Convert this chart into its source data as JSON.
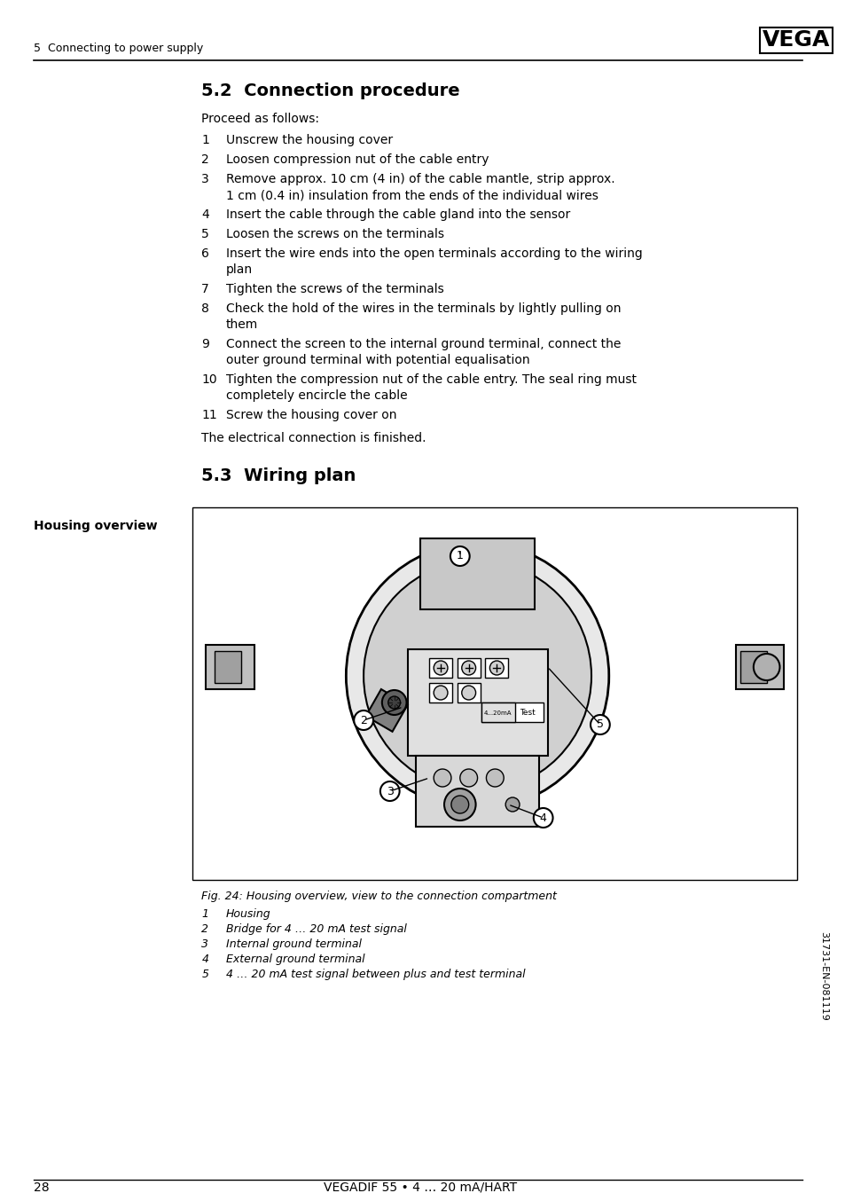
{
  "page_number": "28",
  "footer_text": "VEGADIF 55 • 4 … 20 mA/HART",
  "header_section": "5  Connecting to power supply",
  "section_title": "5.2  Connection procedure",
  "proceed_text": "Proceed as follows:",
  "steps": [
    {
      "num": "1",
      "text": "Unscrew the housing cover"
    },
    {
      "num": "2",
      "text": "Loosen compression nut of the cable entry"
    },
    {
      "num": "3",
      "text": "Remove approx. 10 cm (4 in) of the cable mantle, strip approx.\n1 cm (0.4 in) insulation from the ends of the individual wires"
    },
    {
      "num": "4",
      "text": "Insert the cable through the cable gland into the sensor"
    },
    {
      "num": "5",
      "text": "Loosen the screws on the terminals"
    },
    {
      "num": "6",
      "text": "Insert the wire ends into the open terminals according to the wiring\nplan"
    },
    {
      "num": "7",
      "text": "Tighten the screws of the terminals"
    },
    {
      "num": "8",
      "text": "Check the hold of the wires in the terminals by lightly pulling on\nthem"
    },
    {
      "num": "9",
      "text": "Connect the screen to the internal ground terminal, connect the\nouter ground terminal with potential equalisation"
    },
    {
      "num": "10",
      "text": "Tighten the compression nut of the cable entry. The seal ring must\ncompletely encircle the cable"
    },
    {
      "num": "11",
      "text": "Screw the housing cover on"
    }
  ],
  "finish_text": "The electrical connection is finished.",
  "section2_title": "5.3  Wiring plan",
  "side_label": "Housing overview",
  "fig_caption": "Fig. 24: Housing overview, view to the connection compartment",
  "fig_items": [
    {
      "num": "1",
      "text": "Housing"
    },
    {
      "num": "2",
      "text": "Bridge for 4 … 20 mA test signal"
    },
    {
      "num": "3",
      "text": "Internal ground terminal"
    },
    {
      "num": "4",
      "text": "External ground terminal"
    },
    {
      "num": "5",
      "text": "4 … 20 mA test signal between plus and test terminal"
    }
  ],
  "side_text": "31731-EN-081119",
  "bg_color": "#ffffff",
  "text_color": "#000000",
  "line_color": "#000000"
}
